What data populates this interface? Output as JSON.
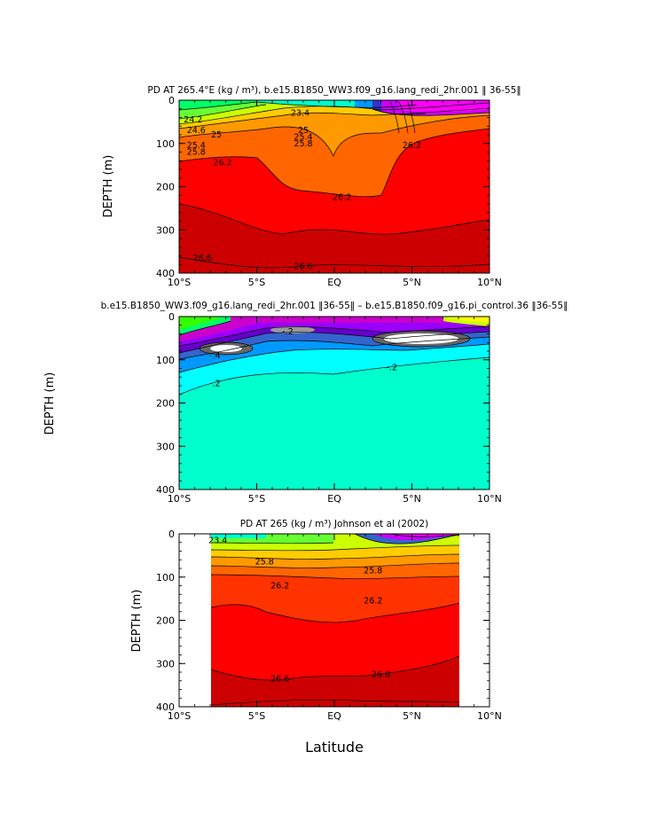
{
  "chart_data": [
    {
      "type": "contour",
      "title": "PD AT 265.4°E (kg / m³), b.e15.B1850_WW3.f09_g16.lang_redi_2hr.001 ‖ 36-55‖",
      "ylabel": "DEPTH (m)",
      "xlabel": "",
      "x_ticks": [
        "10°S",
        "5°S",
        "EQ",
        "5°N",
        "10°N"
      ],
      "y_ticks": [
        "0",
        "100",
        "200",
        "300",
        "400"
      ],
      "xlim": [
        -10,
        10
      ],
      "ylim": [
        400,
        0
      ],
      "contour_labels": [
        {
          "text": "24.2",
          "lat": -9.1,
          "depth": 45
        },
        {
          "text": "24.6",
          "lat": -8.9,
          "depth": 70
        },
        {
          "text": "25",
          "lat": -7.6,
          "depth": 80
        },
        {
          "text": "25.4",
          "lat": -8.9,
          "depth": 105
        },
        {
          "text": "25.8",
          "lat": -8.9,
          "depth": 120
        },
        {
          "text": "26.2",
          "lat": -7.2,
          "depth": 145
        },
        {
          "text": "23.4",
          "lat": -2.2,
          "depth": 30
        },
        {
          "text": "25",
          "lat": -2.0,
          "depth": 70
        },
        {
          "text": "25.4",
          "lat": -2.0,
          "depth": 85
        },
        {
          "text": "25.8",
          "lat": -2.0,
          "depth": 100
        },
        {
          "text": "26.2",
          "lat": 0.5,
          "depth": 225
        },
        {
          "text": "26.2",
          "lat": 5.0,
          "depth": 105
        },
        {
          "text": "26.6",
          "lat": -8.5,
          "depth": 365
        },
        {
          "text": "26.6",
          "lat": -2.0,
          "depth": 385
        }
      ]
    },
    {
      "type": "contour",
      "title": "b.e15.B1850_WW3.f09_g16.lang_redi_2hr.001 ‖36-55‖ – b.e15.B1850.f09_g16.pi_control.36 ‖36-55‖",
      "ylabel": "DEPTH (m)",
      "xlabel": "",
      "x_ticks": [
        "10°S",
        "5°S",
        "EQ",
        "5°N",
        "10°N"
      ],
      "y_ticks": [
        "0",
        "100",
        "200",
        "300",
        "400"
      ],
      "xlim": [
        -10,
        10
      ],
      "ylim": [
        400,
        0
      ],
      "contour_labels": [
        {
          "text": "-.2",
          "lat": -7.7,
          "depth": 155
        },
        {
          "text": "-.2",
          "lat": 3.7,
          "depth": 118
        },
        {
          "text": "-.2",
          "lat": -3.0,
          "depth": 35
        },
        {
          "text": "-.4",
          "lat": -7.7,
          "depth": 90
        }
      ]
    },
    {
      "type": "contour",
      "title": "PD AT 265 (kg / m³) Johnson et al (2002)",
      "ylabel": "DEPTH (m)",
      "xlabel": "Latitude",
      "x_ticks": [
        "10°S",
        "5°S",
        "EQ",
        "5°N",
        "10°N"
      ],
      "y_ticks": [
        "0",
        "100",
        "200",
        "300",
        "400"
      ],
      "xlim": [
        -10,
        10
      ],
      "ylim": [
        400,
        0
      ],
      "data_lat_range": [
        -8,
        8
      ],
      "contour_labels": [
        {
          "text": "23.4",
          "lat": -7.5,
          "depth": 15
        },
        {
          "text": "25.8",
          "lat": -4.5,
          "depth": 65
        },
        {
          "text": "25.8",
          "lat": 2.5,
          "depth": 85
        },
        {
          "text": "26.2",
          "lat": -3.5,
          "depth": 120
        },
        {
          "text": "26.2",
          "lat": 2.5,
          "depth": 155
        },
        {
          "text": "26.6",
          "lat": -3.5,
          "depth": 335
        },
        {
          "text": "26.6",
          "lat": 3.0,
          "depth": 325
        }
      ]
    }
  ]
}
